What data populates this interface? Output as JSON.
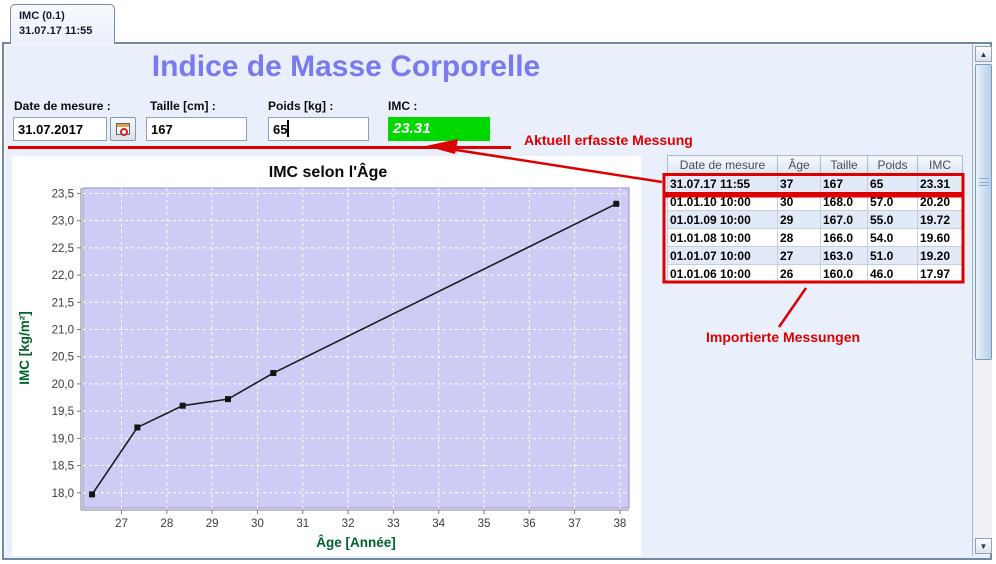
{
  "tab": {
    "line1": "IMC (0.1)",
    "line2": "31.07.17 11:55"
  },
  "title": "Indice de Masse Corporelle",
  "form": {
    "date_label": "Date de mesure :",
    "date_value": "31.07.2017",
    "height_label": "Taille [cm] :",
    "height_value": "167",
    "weight_label": "Poids [kg] :",
    "weight_value": "65",
    "imc_label": "IMC :",
    "imc_value": "23.31"
  },
  "annotations": {
    "current_label": "Aktuell erfasste Messung",
    "imported_label": "Importierte Messungen"
  },
  "chart_data": {
    "type": "line",
    "title": "IMC selon l'Âge",
    "xlabel": "Âge [Année]",
    "ylabel": "IMC [kg/m²]",
    "x": [
      26.35,
      27.35,
      28.35,
      29.35,
      30.35,
      37.92
    ],
    "y": [
      17.97,
      19.2,
      19.6,
      19.72,
      20.2,
      23.31
    ],
    "xlim": [
      26.15,
      38.2
    ],
    "ylim": [
      17.72,
      23.6
    ],
    "xticks": [
      27,
      28,
      29,
      30,
      31,
      32,
      33,
      34,
      35,
      36,
      37,
      38
    ],
    "yticks": [
      18,
      18.5,
      19,
      19.5,
      20,
      20.5,
      21,
      21.5,
      22,
      22.5,
      23,
      23.5
    ],
    "grid": true,
    "legend": false,
    "decimal_comma": true,
    "plot_bg": "#ccccf4",
    "grid_color": "#ffffff",
    "line_color": "#1c1c1c",
    "axis_label_color": "#00632a"
  },
  "table": {
    "headers": [
      "Date de mesure",
      "Âge",
      "Taille",
      "Poids",
      "IMC"
    ],
    "rows": [
      [
        "31.07.17 11:55",
        "37",
        "167",
        "65",
        "23.31"
      ],
      [
        "01.01.10 10:00",
        "30",
        "168.0",
        "57.0",
        "20.20"
      ],
      [
        "01.01.09 10:00",
        "29",
        "167.0",
        "55.0",
        "19.72"
      ],
      [
        "01.01.08 10:00",
        "28",
        "166.0",
        "54.0",
        "19.60"
      ],
      [
        "01.01.07 10:00",
        "27",
        "163.0",
        "51.0",
        "19.20"
      ],
      [
        "01.01.06 10:00",
        "26",
        "160.0",
        "46.0",
        "17.97"
      ]
    ]
  },
  "scrollbar": {
    "up_arrow": "▲",
    "down_arrow": "▼"
  },
  "colors": {
    "accent_red": "#dd0000",
    "imc_green": "#00d800",
    "title_purple": "#7a7af0",
    "axis_green": "#00632a",
    "plot_bg": "#ccccf4",
    "panel_bg": "#e9effb"
  }
}
